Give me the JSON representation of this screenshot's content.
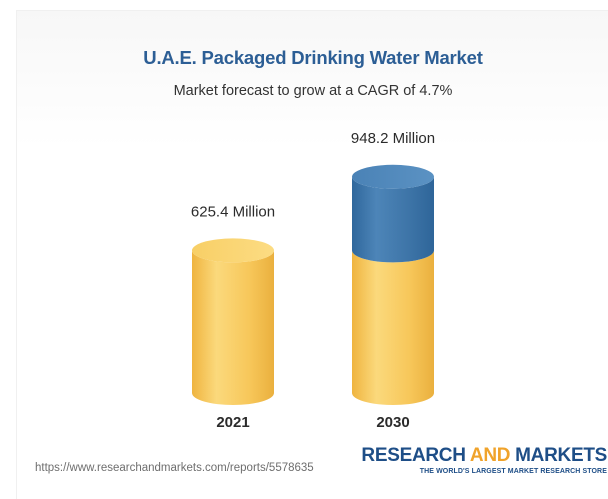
{
  "chart_data": {
    "type": "bar",
    "title": "U.A.E. Packaged Drinking Water Market",
    "subtitle": "Market forecast to grow at a CAGR of 4.7%",
    "categories": [
      "2021",
      "2030"
    ],
    "values": [
      625.4,
      948.2
    ],
    "value_labels": [
      "625.4 Million",
      "948.2 Million"
    ],
    "unit": "Million",
    "style": "3d-cylinder",
    "colors": {
      "base": "#f7c75a",
      "growth": "#3d74a7",
      "title": "#2c5e95"
    }
  },
  "footer": {
    "source_url": "https://www.researchandmarkets.com/reports/5578635",
    "brand_part1": "RESEARCH ",
    "brand_part2": "AND",
    "brand_part3": " MARKETS",
    "brand_tagline": "THE WORLD'S LARGEST MARKET RESEARCH STORE"
  }
}
